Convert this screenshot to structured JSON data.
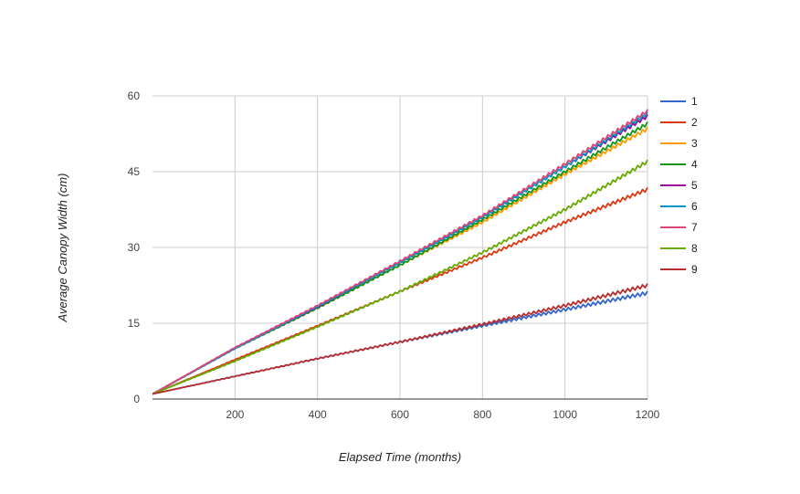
{
  "chart_data": {
    "type": "line",
    "title": "",
    "xlabel": "Elapsed Time (months)",
    "ylabel": "Average Canopy Width (cm)",
    "xlim": [
      0,
      1200
    ],
    "ylim": [
      0,
      60
    ],
    "xticks": [
      200,
      400,
      600,
      800,
      1000,
      1200
    ],
    "yticks": [
      0,
      15,
      30,
      45,
      60
    ],
    "grid": true,
    "legend_position": "right",
    "series": [
      {
        "name": "1",
        "color": "#3366cc",
        "x": [
          0,
          200,
          400,
          600,
          800,
          1000,
          1200
        ],
        "values": [
          1,
          4.5,
          8,
          11.3,
          14.5,
          17.7,
          21
        ]
      },
      {
        "name": "2",
        "color": "#dc3912",
        "x": [
          0,
          200,
          400,
          600,
          800,
          1000,
          1200
        ],
        "values": [
          1,
          7.8,
          14.5,
          21.3,
          28,
          35,
          41.5
        ]
      },
      {
        "name": "3",
        "color": "#ff9900",
        "x": [
          0,
          200,
          400,
          600,
          800,
          1000,
          1200
        ],
        "values": [
          1,
          10,
          18,
          26.5,
          35,
          44.5,
          53.5
        ]
      },
      {
        "name": "4",
        "color": "#109618",
        "x": [
          0,
          200,
          400,
          600,
          800,
          1000,
          1200
        ],
        "values": [
          1,
          10,
          18,
          26.5,
          35.5,
          45,
          54.5
        ]
      },
      {
        "name": "5",
        "color": "#990099",
        "x": [
          0,
          200,
          400,
          600,
          800,
          1000,
          1200
        ],
        "values": [
          1,
          10,
          18.2,
          27,
          36,
          46,
          56
        ]
      },
      {
        "name": "6",
        "color": "#0099c6",
        "x": [
          0,
          200,
          400,
          600,
          800,
          1000,
          1200
        ],
        "values": [
          1,
          10,
          18.3,
          27,
          36,
          46,
          56.5
        ]
      },
      {
        "name": "7",
        "color": "#dd4477",
        "x": [
          0,
          200,
          400,
          600,
          800,
          1000,
          1200
        ],
        "values": [
          1,
          10.2,
          18.5,
          27.3,
          36.3,
          46.5,
          57
        ]
      },
      {
        "name": "8",
        "color": "#66aa00",
        "x": [
          0,
          200,
          400,
          600,
          800,
          1000,
          1200
        ],
        "values": [
          1,
          7.5,
          14.3,
          21.3,
          29,
          37.5,
          47
        ]
      },
      {
        "name": "9",
        "color": "#b82e2e",
        "x": [
          0,
          200,
          400,
          600,
          800,
          1000,
          1200
        ],
        "values": [
          1,
          4.5,
          8,
          11.3,
          14.8,
          18.5,
          22.5
        ]
      }
    ]
  }
}
